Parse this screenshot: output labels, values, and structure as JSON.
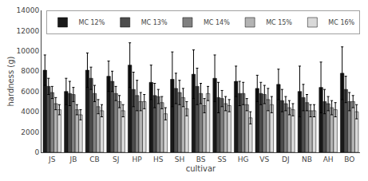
{
  "chart_data": {
    "type": "bar",
    "categories": [
      "JS",
      "JB",
      "CB",
      "SJ",
      "HP",
      "HS",
      "SH",
      "BS",
      "SS",
      "HG",
      "VS",
      "DJ",
      "NB",
      "AH",
      "BO"
    ],
    "series": [
      {
        "name": "MC 12%",
        "color": "#1a1a1a",
        "values": [
          8100,
          6000,
          8100,
          7500,
          8600,
          6900,
          7200,
          7700,
          7300,
          7000,
          6300,
          6700,
          6000,
          6400,
          7800
        ],
        "errors": [
          1500,
          1300,
          1700,
          1500,
          2200,
          1700,
          2700,
          2400,
          2300,
          1500,
          1300,
          1500,
          2500,
          2500,
          2600
        ]
      },
      {
        "name": "MC 13%",
        "color": "#4d4d4d",
        "values": [
          6500,
          5800,
          7300,
          7000,
          6200,
          5600,
          6300,
          6500,
          5400,
          5800,
          5800,
          5100,
          5400,
          5000,
          6200
        ],
        "errors": [
          800,
          1200,
          1100,
          1000,
          1700,
          1200,
          1500,
          1800,
          1500,
          1200,
          1100,
          1100,
          1300,
          1200,
          1300
        ]
      },
      {
        "name": "MC 14%",
        "color": "#808080",
        "values": [
          5900,
          5700,
          5800,
          5800,
          5600,
          5500,
          5900,
          5800,
          5300,
          5800,
          5700,
          4800,
          4900,
          4800,
          5000
        ],
        "errors": [
          600,
          700,
          800,
          700,
          1500,
          700,
          1200,
          1000,
          800,
          1100,
          900,
          700,
          800,
          700,
          900
        ]
      },
      {
        "name": "MC 15%",
        "color": "#b3b3b3",
        "values": [
          4800,
          4200,
          4500,
          5000,
          5000,
          4900,
          5400,
          4600,
          4800,
          4700,
          5200,
          4400,
          4100,
          4400,
          5000
        ],
        "errors": [
          600,
          500,
          700,
          600,
          900,
          600,
          900,
          700,
          700,
          600,
          1100,
          700,
          600,
          700,
          600
        ]
      },
      {
        "name": "MC 16%",
        "color": "#d9d9d9",
        "values": [
          4200,
          3700,
          4100,
          4100,
          5000,
          3800,
          4300,
          5800,
          4600,
          3400,
          4700,
          4200,
          4100,
          4200,
          4000
        ],
        "errors": [
          500,
          500,
          600,
          600,
          700,
          600,
          700,
          700,
          600,
          600,
          800,
          600,
          600,
          700,
          700
        ]
      }
    ],
    "xlabel": "cultivar",
    "ylabel": "hardness (g)",
    "ylim": [
      0,
      14000
    ],
    "yticks": [
      0,
      2000,
      4000,
      6000,
      8000,
      10000,
      12000,
      14000
    ],
    "legend": "upper right",
    "grid": false
  }
}
